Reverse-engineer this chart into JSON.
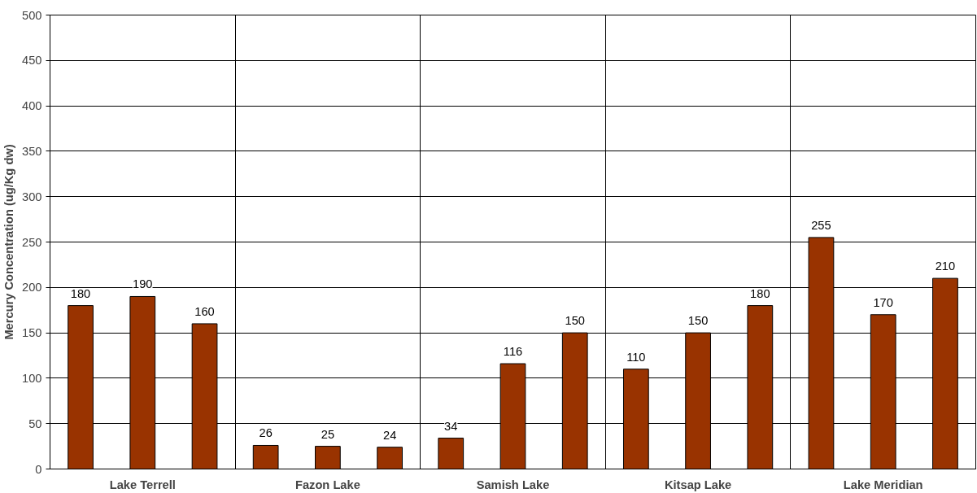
{
  "chart_data": {
    "type": "bar",
    "ylabel": "Mercury Concentration (ug/Kg dw)",
    "categories": [
      "Lake Terrell",
      "Fazon Lake",
      "Samish Lake",
      "Kitsap Lake",
      "Lake Meridian"
    ],
    "series": [
      {
        "color": "#993300",
        "values": [
          180,
          26,
          34,
          110,
          255
        ]
      },
      {
        "color": "#993300",
        "values": [
          190,
          25,
          116,
          150,
          170
        ]
      },
      {
        "color": "#993300",
        "values": [
          160,
          24,
          150,
          180,
          210
        ]
      }
    ],
    "ylim": [
      0,
      500
    ],
    "yticks": [
      0,
      50,
      100,
      150,
      200,
      250,
      300,
      350,
      400,
      450,
      500
    ],
    "grid": true,
    "data_labels": true
  }
}
